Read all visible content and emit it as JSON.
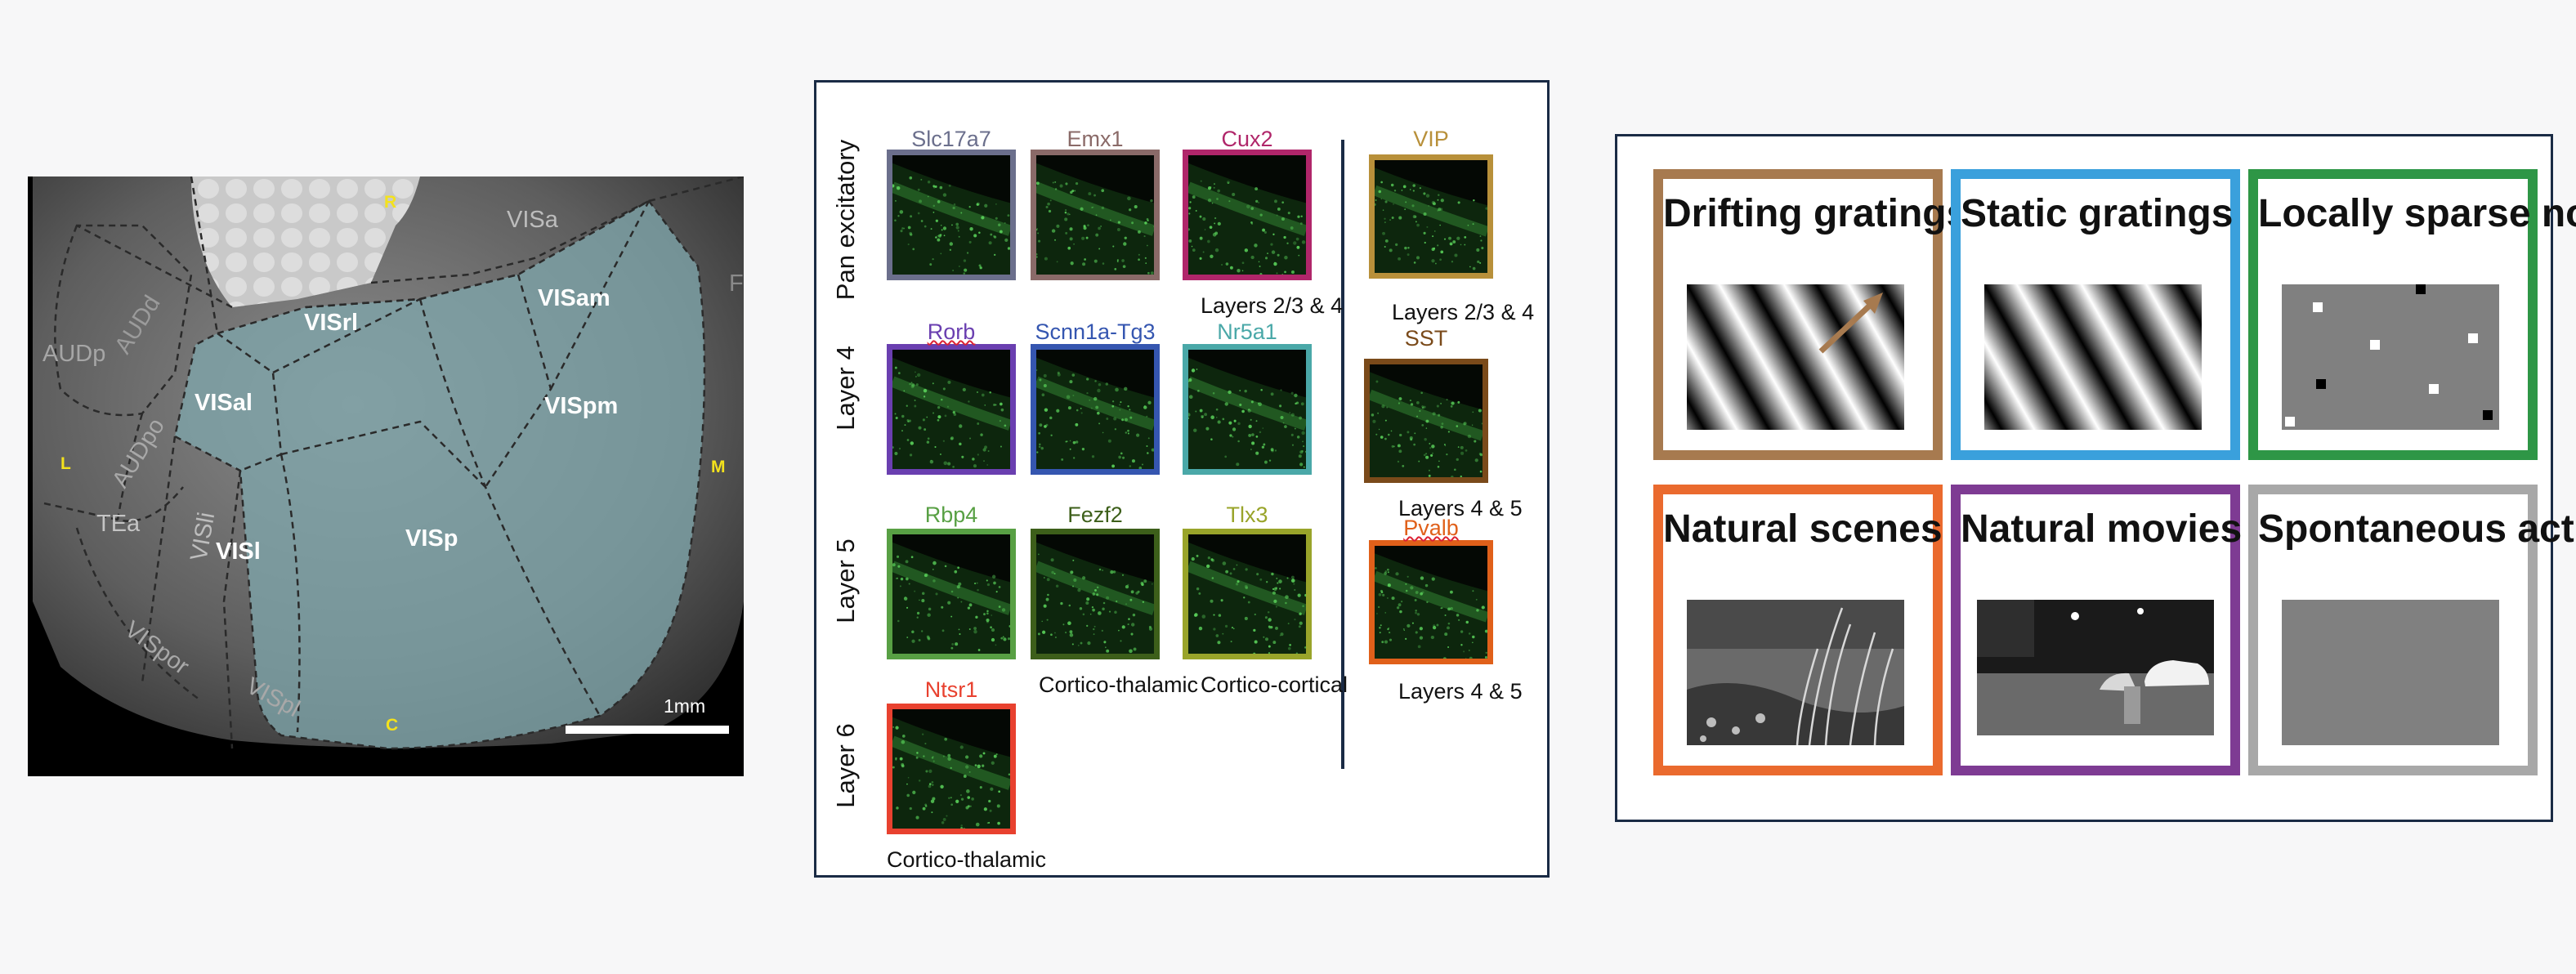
{
  "map": {
    "areas": [
      "VISa",
      "AUDd",
      "AUDp",
      "AUDpo",
      "VISrl",
      "VISam",
      "VISal",
      "VISpm",
      "VISl",
      "VISp",
      "VISli",
      "TEa",
      "VISpor",
      "VISpl",
      "F"
    ],
    "orientation": {
      "rostral": "R",
      "lateral": "L",
      "medial": "M",
      "caudal": "C"
    },
    "scale_bar": "1mm",
    "colors": {
      "highlight": "#7fa5ab",
      "orientation": "#f4e21c"
    }
  },
  "cre_lines": {
    "rows": [
      "Pan excitatory",
      "Layer 4",
      "Layer 5",
      "Layer 6"
    ],
    "excitatory": [
      {
        "name": "Slc17a7",
        "color": "#6b6f8c"
      },
      {
        "name": "Emx1",
        "color": "#8a6a68"
      },
      {
        "name": "Cux2",
        "color": "#b0266a"
      },
      {
        "name": "Rorb",
        "color": "#6a3fb0"
      },
      {
        "name": "Scnn1a-Tg3",
        "color": "#3556b0"
      },
      {
        "name": "Nr5a1",
        "color": "#4aa8a8"
      },
      {
        "name": "Rbp4",
        "color": "#58a044"
      },
      {
        "name": "Fezf2",
        "color": "#3d5f1a"
      },
      {
        "name": "Tlx3",
        "color": "#99a42a"
      },
      {
        "name": "Ntsr1",
        "color": "#e8412f"
      }
    ],
    "inhibitory": [
      {
        "name": "VIP",
        "color": "#b8903a"
      },
      {
        "name": "SST",
        "color": "#7a4a1a"
      },
      {
        "name": "Pvalb",
        "color": "#e0601a"
      }
    ],
    "notes": {
      "cux2": "Layers 2/3 & 4",
      "fezf2": "Cortico-thalamic",
      "tlx3": "Cortico-cortical",
      "ntsr1": "Cortico-thalamic",
      "vip": "Layers 2/3 & 4",
      "sst": "Layers 4 & 5",
      "pvalb": "Layers 4 & 5"
    }
  },
  "stimuli": [
    {
      "title": "Drifting gratings",
      "color": "#a77a4f"
    },
    {
      "title": "Static gratings",
      "color": "#3aa0dc"
    },
    {
      "title": "Locally sparse noise",
      "color": "#2e9646"
    },
    {
      "title": "Natural scenes",
      "color": "#ea6a2e"
    },
    {
      "title": "Natural movies",
      "color": "#7e3b93"
    },
    {
      "title": "Spontaneous activity",
      "color": "#a8a8a8"
    }
  ]
}
